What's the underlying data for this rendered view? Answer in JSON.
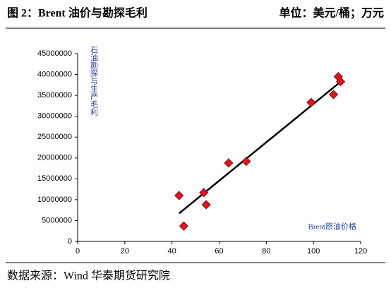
{
  "header": {
    "title": "图 2：Brent 油价与勘探毛利",
    "unit": "单位：美元/桶；万元"
  },
  "chart_data": {
    "type": "scatter",
    "x_label": "Brent原油价格",
    "y_label": "石油勘探与生产毛利",
    "x": [
      43,
      45,
      53.5,
      54.5,
      64,
      71.5,
      99,
      108.5,
      110.5,
      111.5
    ],
    "values": [
      11000000,
      3700000,
      11700000,
      8800000,
      18800000,
      19200000,
      33300000,
      35200000,
      39500000,
      38300000
    ],
    "color": "#e0141e",
    "trendline": {
      "x": [
        43,
        112
      ],
      "values": [
        6700000,
        38500000
      ],
      "color": "#000000"
    },
    "xlim": [
      0,
      120
    ],
    "xticks": [
      0,
      20,
      40,
      60,
      80,
      100,
      120
    ],
    "ylim": [
      0,
      45000000
    ],
    "yticks": [
      0,
      5000000,
      10000000,
      15000000,
      20000000,
      25000000,
      30000000,
      35000000,
      40000000,
      45000000
    ]
  },
  "footer": {
    "source": "数据来源：Wind 华泰期货研究院"
  }
}
